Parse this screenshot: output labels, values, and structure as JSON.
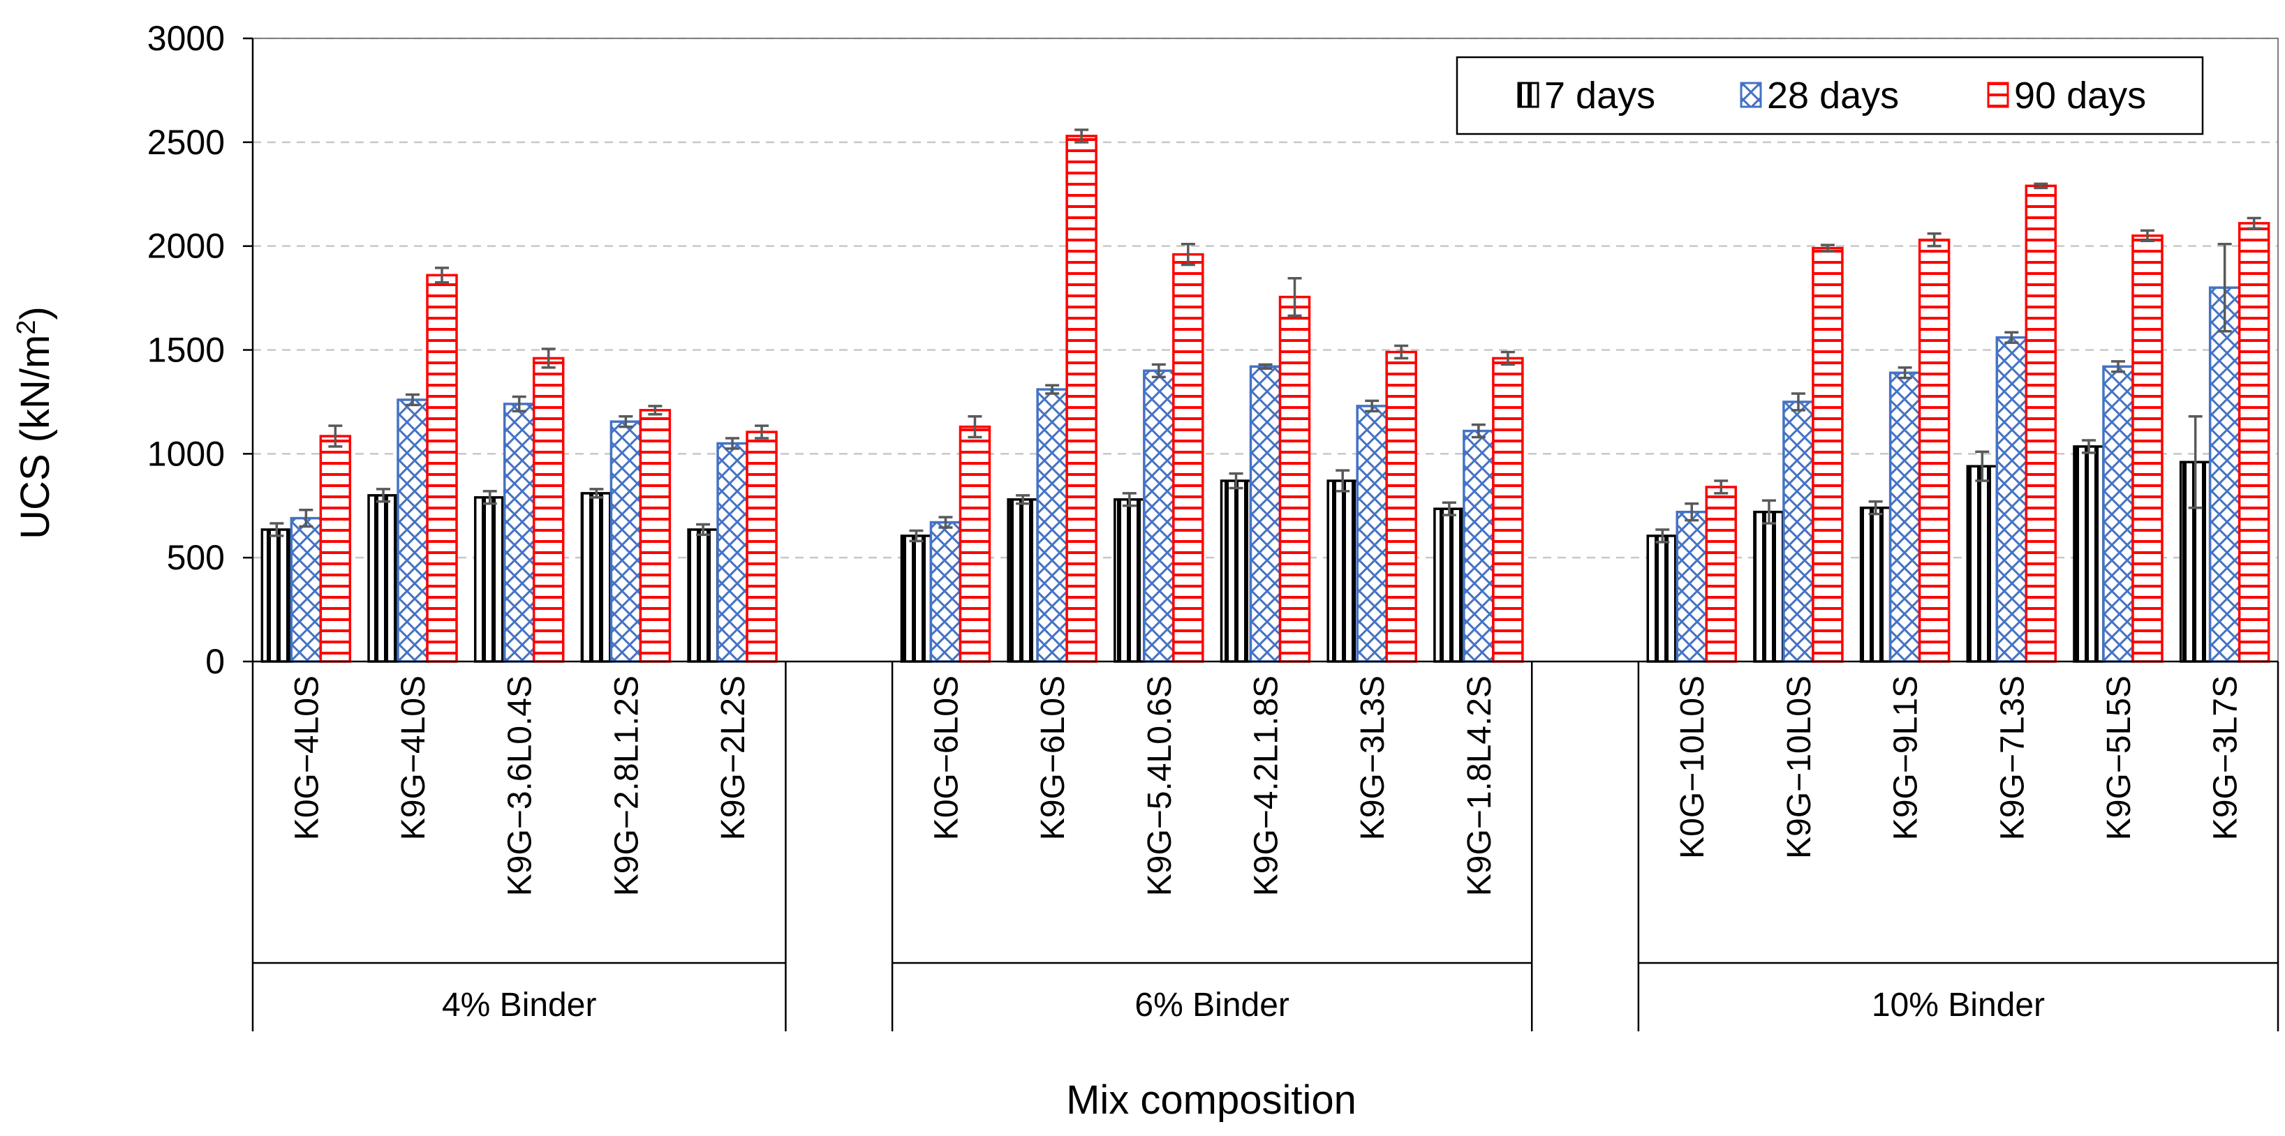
{
  "chart_data": {
    "type": "bar",
    "title": "",
    "xlabel": "Mix composition",
    "ylabel_main": "UCS (kN/m",
    "ylabel_sup": "2",
    "ylabel_end": ")",
    "ylim": [
      0,
      3000
    ],
    "yticks": [
      "0",
      "500",
      "1000",
      "1500",
      "2000",
      "2500",
      "3000"
    ],
    "grid": "horizontal dashed",
    "legend_position": "top-right",
    "groups": [
      {
        "label": "4% Binder",
        "categories": [
          "K0G−4L0S",
          "K9G−4L0S",
          "K9G−3.6L0.4S",
          "K9G−2.8L1.2S",
          "K9G−2L2S"
        ]
      },
      {
        "label": "6% Binder",
        "categories": [
          "K0G−6L0S",
          "K9G−6L0S",
          "K9G−5.4L0.6S",
          "K9G−4.2L1.8S",
          "K9G−3L3S",
          "K9G−1.8L4.2S"
        ]
      },
      {
        "label": "10% Binder",
        "categories": [
          "K0G−10L0S",
          "K9G−10L0S",
          "K9G−9L1S",
          "K9G−7L3S",
          "K9G−5L5S",
          "K9G−3L7S"
        ]
      }
    ],
    "series": [
      {
        "name": "7 days",
        "color": "#000000",
        "pattern": "vertical-lines",
        "values": [
          635,
          800,
          790,
          810,
          635,
          605,
          780,
          780,
          870,
          870,
          735,
          605,
          720,
          740,
          940,
          1035,
          960
        ],
        "errors": [
          30,
          30,
          30,
          20,
          25,
          25,
          20,
          30,
          35,
          50,
          30,
          30,
          55,
          30,
          70,
          30,
          220
        ]
      },
      {
        "name": "28 days",
        "color": "#4472C4",
        "pattern": "crosshatch",
        "values": [
          690,
          1260,
          1240,
          1155,
          1050,
          670,
          1310,
          1400,
          1420,
          1230,
          1110,
          720,
          1250,
          1390,
          1560,
          1420,
          1800
        ],
        "errors": [
          40,
          25,
          35,
          25,
          25,
          25,
          20,
          30,
          10,
          25,
          30,
          40,
          40,
          25,
          25,
          25,
          210
        ]
      },
      {
        "name": "90 days",
        "color": "#FF0000",
        "pattern": "horizontal-lines",
        "values": [
          1085,
          1860,
          1460,
          1210,
          1105,
          1130,
          2530,
          1960,
          1755,
          1490,
          1460,
          840,
          1990,
          2030,
          2290,
          2050,
          2110
        ],
        "errors": [
          50,
          35,
          45,
          20,
          30,
          50,
          30,
          50,
          90,
          30,
          30,
          30,
          15,
          30,
          10,
          25,
          25
        ]
      }
    ]
  }
}
